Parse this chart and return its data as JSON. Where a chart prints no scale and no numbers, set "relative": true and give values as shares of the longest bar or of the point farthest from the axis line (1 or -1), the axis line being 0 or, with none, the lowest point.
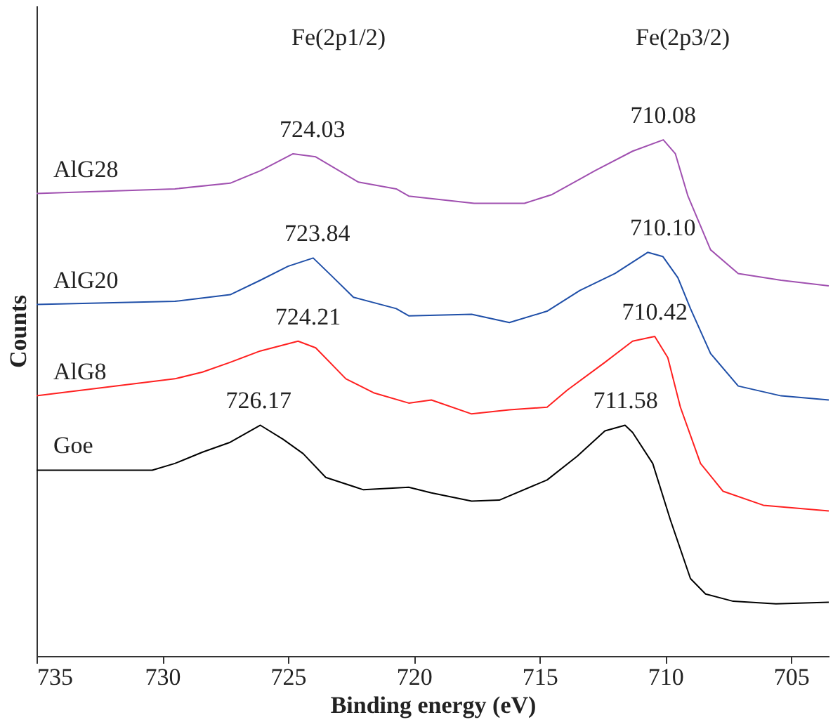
{
  "chart_data": {
    "type": "line",
    "relative": true,
    "xlabel": "Binding energy (eV)",
    "ylabel": "Counts",
    "xlim": [
      735,
      703.5
    ],
    "xticks": [
      735,
      730,
      725,
      720,
      715,
      710,
      705
    ],
    "grid": false,
    "legend": false,
    "marker": "none",
    "line_style": "solid",
    "series": [
      {
        "name": "Goe",
        "color": "#000000",
        "x": [
          735,
          730.4,
          729.5,
          728.4,
          727.3,
          726.1,
          725.2,
          724.4,
          723.5,
          722.0,
          720.2,
          719.3,
          717.7,
          716.6,
          714.7,
          713.5,
          712.4,
          711.6,
          711.3,
          710.5,
          709.8,
          709.0,
          708.4,
          707.3,
          705.6,
          703.5
        ],
        "values": [
          0.36,
          0.36,
          0.373,
          0.395,
          0.414,
          0.447,
          0.42,
          0.392,
          0.346,
          0.322,
          0.327,
          0.316,
          0.3,
          0.302,
          0.341,
          0.387,
          0.436,
          0.447,
          0.433,
          0.373,
          0.264,
          0.15,
          0.12,
          0.106,
          0.101,
          0.104
        ]
      },
      {
        "name": "AlG8",
        "color": "#ff2020",
        "x": [
          735,
          729.5,
          728.4,
          727.3,
          726.1,
          724.6,
          723.9,
          722.7,
          721.6,
          720.2,
          719.3,
          717.7,
          716.2,
          714.7,
          713.9,
          712.4,
          711.3,
          710.42,
          709.9,
          709.4,
          708.6,
          707.7,
          706.1,
          703.5
        ],
        "values": [
          0.504,
          0.537,
          0.55,
          0.569,
          0.591,
          0.61,
          0.597,
          0.537,
          0.51,
          0.49,
          0.496,
          0.469,
          0.477,
          0.482,
          0.515,
          0.569,
          0.61,
          0.619,
          0.578,
          0.482,
          0.373,
          0.319,
          0.292,
          0.281
        ]
      },
      {
        "name": "AlG20",
        "color": "#1f4fa8",
        "x": [
          735,
          729.5,
          727.3,
          726.1,
          725.0,
          724.0,
          723.3,
          722.4,
          720.7,
          720.2,
          717.7,
          716.2,
          714.7,
          713.4,
          712.0,
          710.7,
          710.1,
          709.5,
          709.0,
          708.2,
          707.1,
          705.4,
          703.5
        ],
        "values": [
          0.681,
          0.687,
          0.7,
          0.728,
          0.755,
          0.771,
          0.738,
          0.695,
          0.673,
          0.659,
          0.662,
          0.646,
          0.668,
          0.708,
          0.741,
          0.782,
          0.774,
          0.733,
          0.673,
          0.586,
          0.523,
          0.504,
          0.496
        ]
      },
      {
        "name": "AlG28",
        "color": "#a050b0",
        "x": [
          735,
          729.5,
          727.3,
          726.1,
          724.8,
          723.9,
          722.2,
          720.7,
          720.2,
          717.6,
          715.6,
          714.5,
          712.8,
          711.3,
          710.08,
          709.6,
          709.1,
          708.2,
          707.1,
          705.4,
          703.5
        ],
        "values": [
          0.896,
          0.905,
          0.916,
          0.94,
          0.973,
          0.967,
          0.918,
          0.905,
          0.891,
          0.877,
          0.877,
          0.894,
          0.94,
          0.978,
          1.0,
          0.973,
          0.891,
          0.787,
          0.741,
          0.728,
          0.717
        ]
      }
    ],
    "annotations": [
      "Fe(2p1/2)",
      "Fe(2p3/2)",
      {
        "text": "726.17",
        "x": 726.17,
        "y": 0.447
      },
      {
        "text": "711.58",
        "x": 711.58,
        "y": 0.447
      },
      {
        "text": "724.21",
        "x": 724.21,
        "y": 0.61
      },
      {
        "text": "710.42",
        "x": 710.42,
        "y": 0.619
      },
      {
        "text": "723.84",
        "x": 723.84,
        "y": 0.771
      },
      {
        "text": "710.10",
        "x": 710.1,
        "y": 0.782
      },
      {
        "text": "724.03",
        "x": 724.03,
        "y": 0.973
      },
      {
        "text": "710.08",
        "x": 710.08,
        "y": 1.0
      }
    ]
  }
}
